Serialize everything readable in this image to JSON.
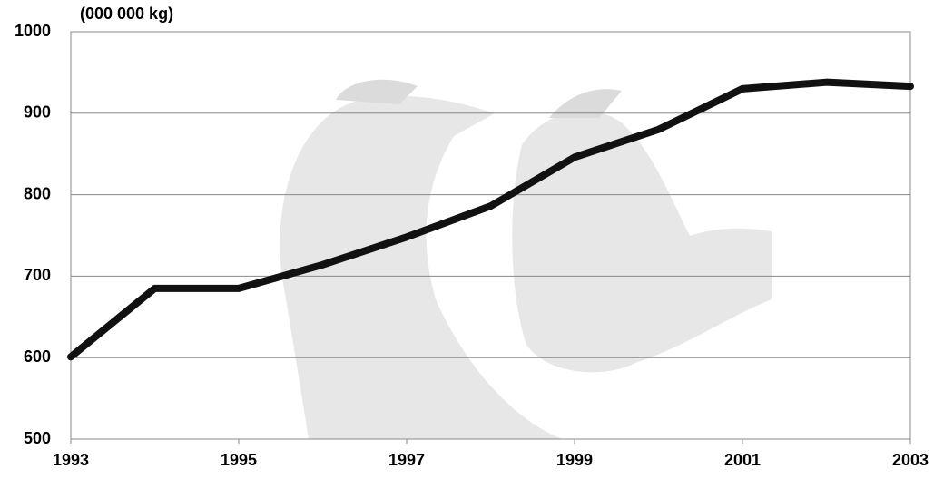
{
  "chart_data": {
    "type": "line",
    "ylabel": "(000 000 kg)",
    "x": [
      1993,
      1994,
      1995,
      1996,
      1997,
      1998,
      1999,
      2000,
      2001,
      2002,
      2003
    ],
    "values": [
      601,
      685,
      685,
      714,
      748,
      786,
      846,
      880,
      930,
      938,
      933
    ],
    "color": "#111111",
    "xlim": [
      1993,
      2003
    ],
    "xticks": [
      1993,
      1995,
      1997,
      1999,
      2001,
      2003
    ],
    "ylim": [
      500,
      1000
    ],
    "yticks": [
      500,
      600,
      700,
      800,
      900,
      1000
    ],
    "grid": true
  }
}
